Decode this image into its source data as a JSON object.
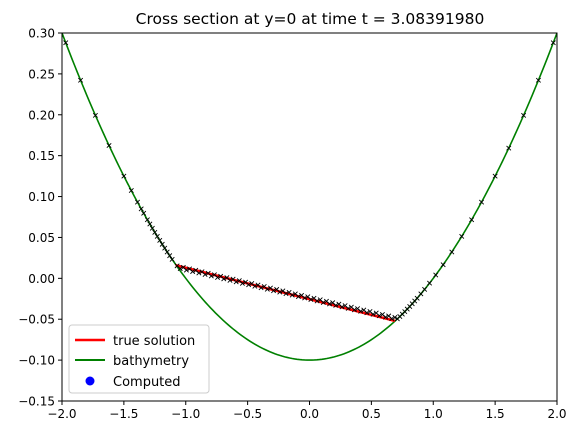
{
  "chart_data": {
    "type": "line",
    "title": "Cross section at y=0 at time t =     3.08391980",
    "xlabel": "",
    "ylabel": "",
    "xlim": [
      -2.0,
      2.0
    ],
    "ylim": [
      -0.15,
      0.3
    ],
    "grid": false,
    "legend_position": "lower-left",
    "x_ticks": [
      -2.0,
      -1.5,
      -1.0,
      -0.5,
      0.0,
      0.5,
      1.0,
      1.5,
      2.0
    ],
    "x_tick_labels": [
      "−2.0",
      "−1.5",
      "−1.0",
      "−0.5",
      "0.0",
      "0.5",
      "1.0",
      "1.5",
      "2.0"
    ],
    "y_ticks": [
      -0.15,
      -0.1,
      -0.05,
      0.0,
      0.05,
      0.1,
      0.15,
      0.2,
      0.25,
      0.3
    ],
    "y_tick_labels": [
      "−0.15",
      "−0.10",
      "−0.05",
      "0.00",
      "0.05",
      "0.10",
      "0.15",
      "0.20",
      "0.25",
      "0.30"
    ],
    "bathymetry": {
      "name": "bathymetry",
      "color": "#008000",
      "formula": "0.1*x^2 - 0.1",
      "x_range": [
        -2.0,
        2.0
      ]
    },
    "true_solution": {
      "name": "true solution",
      "color": "#ff0000",
      "x": [
        -1.08,
        0.69
      ],
      "y": [
        0.016,
        -0.052
      ]
    },
    "computed": {
      "name": "Computed",
      "color": "#0000ff",
      "marker_color": "#000000",
      "wet_segment": {
        "x_start": -1.07,
        "x_end": 0.69,
        "y_start": 0.014,
        "y_end": -0.049
      },
      "dry_points_x": [
        -1.97,
        -1.85,
        -1.73,
        -1.62,
        -1.5,
        -1.44,
        -1.39,
        -1.36,
        -1.34,
        -1.31,
        -1.29,
        -1.27,
        -1.25,
        -1.23,
        -1.21,
        -1.19,
        -1.17,
        -1.15,
        -1.13,
        -1.11,
        0.71,
        0.73,
        0.75,
        0.77,
        0.79,
        0.81,
        0.83,
        0.85,
        0.87,
        0.9,
        0.93,
        0.97,
        1.02,
        1.08,
        1.15,
        1.23,
        1.31,
        1.39,
        1.5,
        1.61,
        1.73,
        1.85,
        1.97
      ]
    }
  }
}
